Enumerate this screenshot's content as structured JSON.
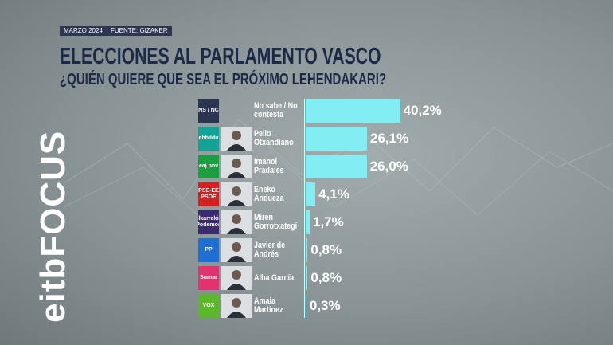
{
  "channel": "eitbFOCUS",
  "chart_data": {
    "type": "bar",
    "date": "MARZO 2024",
    "source": "FUENTE: GIZAKER",
    "title": "ELECCIONES AL PARLAMENTO VASCO",
    "subtitle": "¿QUIÉN QUIERE QUE SEA EL PRÓXIMO LEHENDAKARI?",
    "categories": [
      "No sabe / No contesta",
      "Pello Otxandiano",
      "Imanol Pradales",
      "Eneko Andueza",
      "Miren Gorrotxategi",
      "Javier de Andrés",
      "Alba García",
      "Amaia Martínez"
    ],
    "parties": [
      "NS / NC",
      "ehbildu",
      "eaj pnv",
      "PSE-EE PSOE",
      "elkarrekin Podemos",
      "PP",
      "Sumar",
      "VOX"
    ],
    "party_colors": [
      "#2a3552",
      "#12a394",
      "#1a9e3f",
      "#d42020",
      "#3b2b6e",
      "#1f6fd0",
      "#e0336f",
      "#5cb82b"
    ],
    "values": [
      40.2,
      26.1,
      26.0,
      4.1,
      1.7,
      0.8,
      0.8,
      0.3
    ],
    "value_labels": [
      "40,2%",
      "26,1%",
      "26,0%",
      "4,1%",
      "1,7%",
      "0,8%",
      "0,8%",
      "0,3%"
    ],
    "color": "#82eef3"
  }
}
